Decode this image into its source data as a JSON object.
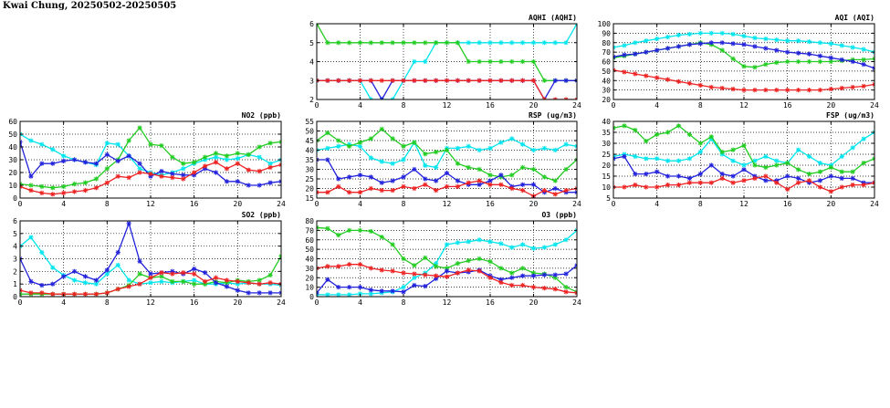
{
  "page": {
    "title": "Kwai Chung, 20250502-20250505"
  },
  "series_colors": {
    "s1": "#00e5ee",
    "s2": "#22cc22",
    "s3": "#2222dd",
    "s4": "#ee2222"
  },
  "chart_data": [
    {
      "id": "aqhi",
      "type": "line",
      "title": "AQHI (AQHI)",
      "x": [
        0,
        1,
        2,
        3,
        4,
        5,
        6,
        7,
        8,
        9,
        10,
        11,
        12,
        13,
        14,
        15,
        16,
        17,
        18,
        19,
        20,
        21,
        22,
        23,
        24
      ],
      "xticks": [
        0,
        4,
        8,
        12,
        16,
        20,
        24
      ],
      "xlim": [
        0,
        24
      ],
      "ylim": [
        2,
        6
      ],
      "yticks": [
        2,
        3,
        4,
        5,
        6
      ],
      "grid": true,
      "series": [
        {
          "color": "#00e5ee",
          "values": [
            3,
            3,
            3,
            3,
            3,
            2,
            2,
            2,
            3,
            4,
            4,
            5,
            5,
            5,
            5,
            5,
            5,
            5,
            5,
            5,
            5,
            5,
            5,
            5,
            6
          ]
        },
        {
          "color": "#22cc22",
          "values": [
            6,
            5,
            5,
            5,
            5,
            5,
            5,
            5,
            5,
            5,
            5,
            5,
            5,
            5,
            4,
            4,
            4,
            4,
            4,
            4,
            4,
            3,
            3,
            3,
            3
          ]
        },
        {
          "color": "#2222dd",
          "values": [
            3,
            3,
            3,
            3,
            3,
            3,
            2,
            3,
            3,
            3,
            3,
            3,
            3,
            3,
            3,
            3,
            3,
            3,
            3,
            3,
            3,
            2,
            3,
            3,
            3
          ]
        },
        {
          "color": "#ee2222",
          "values": [
            3,
            3,
            3,
            3,
            3,
            3,
            3,
            3,
            3,
            3,
            3,
            3,
            3,
            3,
            3,
            3,
            3,
            3,
            3,
            3,
            3,
            2,
            2,
            2,
            2
          ]
        }
      ]
    },
    {
      "id": "aqi",
      "type": "line",
      "title": "AQI (AQI)",
      "x": [
        0,
        1,
        2,
        3,
        4,
        5,
        6,
        7,
        8,
        9,
        10,
        11,
        12,
        13,
        14,
        15,
        16,
        17,
        18,
        19,
        20,
        21,
        22,
        23,
        24
      ],
      "xticks": [
        0,
        4,
        8,
        12,
        16,
        20,
        24
      ],
      "xlim": [
        0,
        24
      ],
      "ylim": [
        20,
        100
      ],
      "yticks": [
        20,
        30,
        40,
        50,
        60,
        70,
        80,
        90,
        100
      ],
      "grid": true,
      "series": [
        {
          "color": "#00e5ee",
          "values": [
            75,
            77,
            80,
            82,
            84,
            86,
            88,
            89,
            90,
            90,
            90,
            89,
            87,
            85,
            84,
            83,
            82,
            82,
            81,
            80,
            79,
            77,
            75,
            73,
            70
          ]
        },
        {
          "color": "#22cc22",
          "values": [
            64,
            66,
            68,
            70,
            72,
            74,
            76,
            78,
            80,
            78,
            72,
            63,
            55,
            54,
            57,
            59,
            60,
            60,
            60,
            60,
            60,
            61,
            62,
            62,
            63
          ]
        },
        {
          "color": "#2222dd",
          "values": [
            65,
            67,
            68,
            70,
            72,
            74,
            76,
            78,
            79,
            80,
            80,
            79,
            78,
            76,
            74,
            72,
            70,
            69,
            68,
            66,
            64,
            62,
            60,
            57,
            53
          ]
        },
        {
          "color": "#ee2222",
          "values": [
            51,
            49,
            47,
            45,
            43,
            41,
            39,
            37,
            35,
            33,
            32,
            31,
            30,
            30,
            30,
            30,
            30,
            30,
            30,
            30,
            31,
            32,
            33,
            34,
            36
          ]
        }
      ]
    },
    {
      "id": "no2",
      "type": "line",
      "title": "NO2 (ppb)",
      "x": [
        0,
        1,
        2,
        3,
        4,
        5,
        6,
        7,
        8,
        9,
        10,
        11,
        12,
        13,
        14,
        15,
        16,
        17,
        18,
        19,
        20,
        21,
        22,
        23,
        24
      ],
      "xticks": [
        0,
        4,
        8,
        12,
        16,
        20,
        24
      ],
      "xlim": [
        0,
        24
      ],
      "ylim": [
        0,
        60
      ],
      "yticks": [
        0,
        10,
        20,
        30,
        40,
        50,
        60
      ],
      "grid": true,
      "series": [
        {
          "color": "#00e5ee",
          "values": [
            50,
            45,
            42,
            38,
            33,
            30,
            28,
            26,
            43,
            42,
            33,
            23,
            20,
            18,
            20,
            23,
            27,
            30,
            32,
            30,
            31,
            34,
            32,
            27,
            30
          ]
        },
        {
          "color": "#22cc22",
          "values": [
            11,
            10,
            9,
            8,
            9,
            11,
            12,
            15,
            23,
            30,
            45,
            55,
            42,
            41,
            32,
            27,
            28,
            32,
            35,
            33,
            35,
            34,
            40,
            43,
            44
          ]
        },
        {
          "color": "#2222dd",
          "values": [
            44,
            17,
            27,
            27,
            29,
            30,
            28,
            27,
            34,
            29,
            33,
            27,
            17,
            21,
            19,
            18,
            18,
            23,
            20,
            13,
            13,
            10,
            10,
            12,
            13
          ]
        },
        {
          "color": "#ee2222",
          "values": [
            9,
            6,
            4,
            3,
            4,
            5,
            6,
            8,
            12,
            17,
            16,
            20,
            19,
            17,
            16,
            15,
            20,
            25,
            28,
            23,
            27,
            22,
            21,
            24,
            26
          ]
        }
      ]
    },
    {
      "id": "rsp",
      "type": "line",
      "title": "RSP (ug/m3)",
      "x": [
        0,
        1,
        2,
        3,
        4,
        5,
        6,
        7,
        8,
        9,
        10,
        11,
        12,
        13,
        14,
        15,
        16,
        17,
        18,
        19,
        20,
        21,
        22,
        23,
        24
      ],
      "xticks": [
        0,
        4,
        8,
        12,
        16,
        20,
        24
      ],
      "xlim": [
        0,
        24
      ],
      "ylim": [
        15,
        55
      ],
      "yticks": [
        15,
        20,
        25,
        30,
        35,
        40,
        45,
        50,
        55
      ],
      "grid": true,
      "series": [
        {
          "color": "#00e5ee",
          "values": [
            40,
            41,
            42,
            43,
            42,
            36,
            34,
            33,
            35,
            44,
            32,
            31,
            41,
            41,
            42,
            40,
            41,
            44,
            46,
            43,
            40,
            41,
            40,
            43,
            42
          ]
        },
        {
          "color": "#22cc22",
          "values": [
            45,
            49,
            45,
            42,
            44,
            46,
            51,
            46,
            42,
            44,
            38,
            39,
            40,
            33,
            31,
            30,
            27,
            26,
            27,
            31,
            30,
            26,
            24,
            30,
            35
          ]
        },
        {
          "color": "#2222dd",
          "values": [
            35,
            35,
            25,
            26,
            27,
            26,
            23,
            24,
            26,
            30,
            25,
            24,
            28,
            24,
            22,
            22,
            24,
            27,
            21,
            22,
            22,
            18,
            20,
            18,
            18
          ]
        },
        {
          "color": "#ee2222",
          "values": [
            18,
            18,
            21,
            18,
            18,
            20,
            19,
            19,
            21,
            20,
            22,
            19,
            21,
            21,
            23,
            24,
            22,
            22,
            20,
            19,
            16,
            19,
            17,
            19,
            20
          ]
        }
      ]
    },
    {
      "id": "fsp",
      "type": "line",
      "title": "FSP (ug/m3)",
      "x": [
        0,
        1,
        2,
        3,
        4,
        5,
        6,
        7,
        8,
        9,
        10,
        11,
        12,
        13,
        14,
        15,
        16,
        17,
        18,
        19,
        20,
        21,
        22,
        23,
        24
      ],
      "xticks": [
        0,
        4,
        8,
        12,
        16,
        20,
        24
      ],
      "xlim": [
        0,
        24
      ],
      "ylim": [
        5,
        40
      ],
      "yticks": [
        5,
        10,
        15,
        20,
        25,
        30,
        35,
        40
      ],
      "grid": true,
      "series": [
        {
          "color": "#00e5ee",
          "values": [
            24,
            25,
            24,
            23,
            23,
            22,
            22,
            23,
            26,
            32,
            25,
            22,
            20,
            22,
            24,
            22,
            21,
            27,
            24,
            21,
            20,
            24,
            28,
            32,
            35
          ]
        },
        {
          "color": "#22cc22",
          "values": [
            37,
            38,
            36,
            31,
            34,
            35,
            38,
            34,
            30,
            33,
            26,
            27,
            29,
            20,
            19,
            20,
            21,
            18,
            16,
            17,
            19,
            17,
            17,
            21,
            23
          ]
        },
        {
          "color": "#2222dd",
          "values": [
            23,
            24,
            16,
            16,
            17,
            15,
            15,
            14,
            16,
            20,
            16,
            15,
            18,
            15,
            13,
            13,
            15,
            14,
            12,
            13,
            15,
            14,
            14,
            12,
            12
          ]
        },
        {
          "color": "#ee2222",
          "values": [
            10,
            10,
            11,
            10,
            10,
            11,
            11,
            12,
            12,
            12,
            14,
            12,
            13,
            14,
            15,
            12,
            9,
            12,
            13,
            10,
            8,
            10,
            11,
            11,
            12
          ]
        }
      ]
    },
    {
      "id": "so2",
      "type": "line",
      "title": "SO2 (ppb)",
      "x": [
        0,
        1,
        2,
        3,
        4,
        5,
        6,
        7,
        8,
        9,
        10,
        11,
        12,
        13,
        14,
        15,
        16,
        17,
        18,
        19,
        20,
        21,
        22,
        23,
        24
      ],
      "xticks": [
        0,
        4,
        8,
        12,
        16,
        20,
        24
      ],
      "xlim": [
        0,
        24
      ],
      "ylim": [
        0,
        6
      ],
      "yticks": [
        0,
        1,
        2,
        3,
        4,
        5,
        6
      ],
      "grid": true,
      "series": [
        {
          "color": "#00e5ee",
          "values": [
            4.0,
            4.7,
            3.5,
            2.3,
            1.7,
            1.3,
            1.1,
            1.0,
            1.8,
            2.5,
            1.3,
            1.0,
            1.1,
            1.2,
            1.1,
            1.2,
            1.3,
            1.0,
            1.0,
            1.1,
            1.0,
            1.1,
            1.0,
            1.0,
            0.9
          ]
        },
        {
          "color": "#22cc22",
          "values": [
            0.2,
            0.2,
            0.2,
            0.2,
            0.2,
            0.2,
            0.2,
            0.2,
            0.3,
            0.6,
            0.9,
            1.8,
            1.5,
            1.6,
            1.2,
            1.2,
            1.0,
            1.0,
            1.2,
            1.1,
            1.3,
            1.2,
            1.3,
            1.7,
            3.2
          ]
        },
        {
          "color": "#2222dd",
          "values": [
            3.0,
            1.2,
            0.9,
            1.0,
            1.6,
            2.0,
            1.6,
            1.3,
            2.1,
            3.5,
            5.8,
            2.8,
            1.8,
            1.9,
            2.0,
            1.8,
            2.2,
            1.9,
            1.1,
            0.8,
            0.5,
            0.3,
            0.3,
            0.3,
            0.3
          ]
        },
        {
          "color": "#ee2222",
          "values": [
            0.5,
            0.3,
            0.3,
            0.2,
            0.2,
            0.2,
            0.2,
            0.2,
            0.3,
            0.6,
            0.8,
            1.0,
            1.5,
            1.9,
            1.8,
            1.9,
            1.8,
            1.2,
            1.5,
            1.3,
            1.2,
            1.1,
            1.0,
            1.1,
            1.0
          ]
        }
      ]
    },
    {
      "id": "o3",
      "type": "line",
      "title": "O3 (ppb)",
      "x": [
        0,
        1,
        2,
        3,
        4,
        5,
        6,
        7,
        8,
        9,
        10,
        11,
        12,
        13,
        14,
        15,
        16,
        17,
        18,
        19,
        20,
        21,
        22,
        23,
        24
      ],
      "xticks": [
        0,
        4,
        8,
        12,
        16,
        20,
        24
      ],
      "xlim": [
        0,
        24
      ],
      "ylim": [
        0,
        80
      ],
      "yticks": [
        0,
        10,
        20,
        30,
        40,
        50,
        60,
        70,
        80
      ],
      "grid": true,
      "series": [
        {
          "color": "#00e5ee",
          "values": [
            2,
            2,
            2,
            2,
            3,
            3,
            4,
            5,
            10,
            20,
            25,
            35,
            55,
            57,
            58,
            60,
            58,
            56,
            52,
            55,
            51,
            52,
            55,
            60,
            70
          ]
        },
        {
          "color": "#22cc22",
          "values": [
            73,
            72,
            65,
            70,
            70,
            69,
            63,
            55,
            40,
            33,
            41,
            32,
            30,
            35,
            38,
            40,
            37,
            30,
            25,
            30,
            25,
            24,
            20,
            10,
            5
          ]
        },
        {
          "color": "#2222dd",
          "values": [
            4,
            18,
            10,
            10,
            10,
            7,
            6,
            6,
            5,
            12,
            11,
            19,
            27,
            25,
            26,
            28,
            22,
            18,
            20,
            22,
            22,
            23,
            23,
            24,
            33
          ]
        },
        {
          "color": "#ee2222",
          "values": [
            30,
            32,
            32,
            34,
            34,
            30,
            28,
            27,
            25,
            24,
            23,
            22,
            21,
            25,
            28,
            27,
            20,
            15,
            12,
            12,
            10,
            9,
            8,
            5,
            4
          ]
        }
      ]
    }
  ]
}
